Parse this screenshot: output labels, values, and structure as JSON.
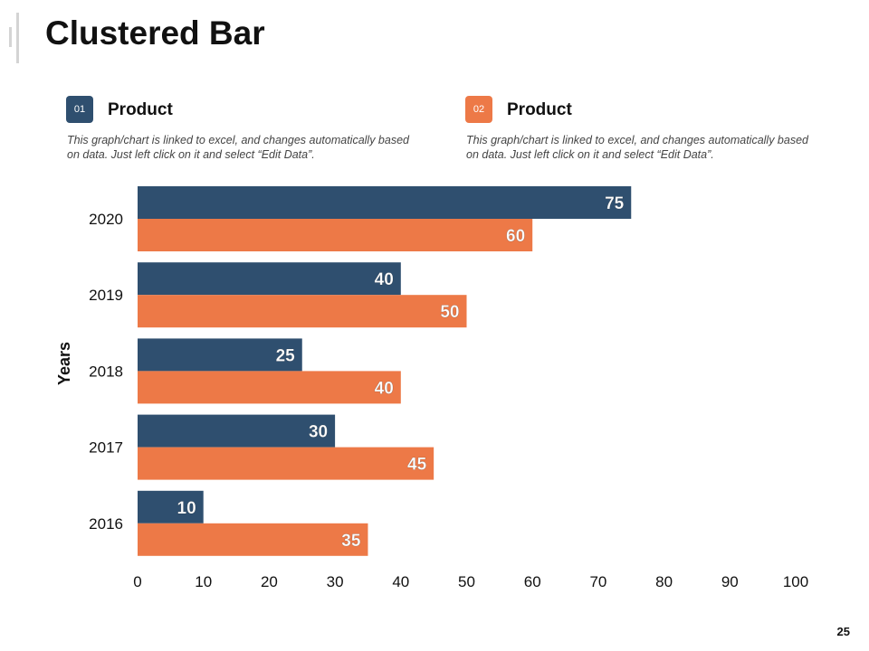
{
  "slide": {
    "title": "Clustered Bar",
    "page_number": "25"
  },
  "legend": [
    {
      "badge": "01",
      "label": "Product",
      "color": "#2f4f6f",
      "description": "This graph/chart is linked to excel, and changes automatically based on data. Just left click on it and select “Edit Data”."
    },
    {
      "badge": "02",
      "label": "Product",
      "color": "#ed7947",
      "description": "This graph/chart is linked to excel, and changes automatically based on data. Just left click on it and select “Edit Data”."
    }
  ],
  "chart_data": {
    "type": "bar",
    "orientation": "horizontal",
    "title": "Clustered Bar",
    "ylabel": "Years",
    "xlabel": "",
    "categories": [
      "2020",
      "2019",
      "2018",
      "2017",
      "2016"
    ],
    "series": [
      {
        "name": "Product 01",
        "color": "#2f4f6f",
        "values": [
          75,
          40,
          25,
          30,
          10
        ]
      },
      {
        "name": "Product 02",
        "color": "#ed7947",
        "values": [
          60,
          50,
          40,
          45,
          35
        ]
      }
    ],
    "xlim": [
      0,
      100
    ],
    "xticks": [
      0,
      10,
      20,
      30,
      40,
      50,
      60,
      70,
      80,
      90,
      100
    ],
    "grid": false,
    "data_labels": true
  }
}
